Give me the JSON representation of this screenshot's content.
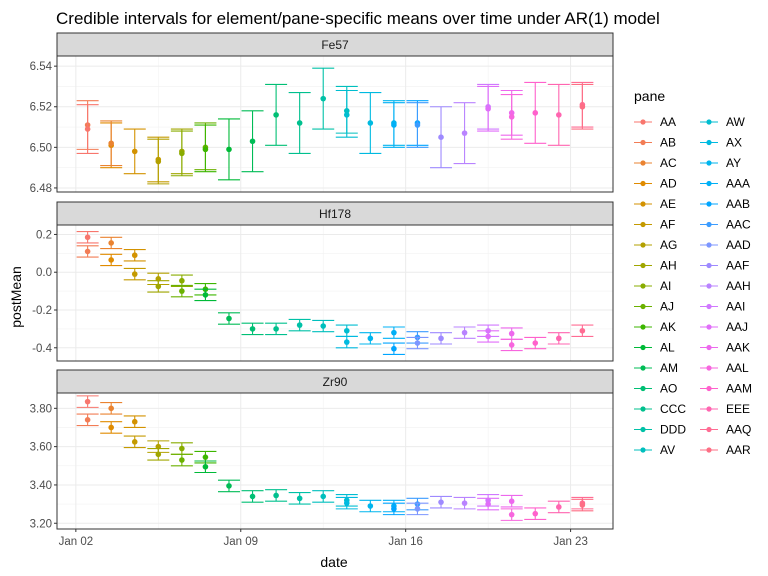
{
  "chart_data": {
    "type": "errorbar",
    "title": "Credible intervals for element/pane-specific means over time under AR(1) model",
    "xlabel": "date",
    "ylabel": "postMean",
    "x_ticks": [
      {
        "day": 2,
        "label": "Jan 02"
      },
      {
        "day": 9,
        "label": "Jan 09"
      },
      {
        "day": 16,
        "label": "Jan 16"
      },
      {
        "day": 23,
        "label": "Jan 23"
      }
    ],
    "xlim": [
      1.2,
      24.8
    ],
    "legend_title": "pane",
    "legend": [
      {
        "name": "AA",
        "color": "#F8766D"
      },
      {
        "name": "AB",
        "color": "#F27C55"
      },
      {
        "name": "AC",
        "color": "#EA8331"
      },
      {
        "name": "AD",
        "color": "#E08B00"
      },
      {
        "name": "AE",
        "color": "#D39200"
      },
      {
        "name": "AF",
        "color": "#C49A00"
      },
      {
        "name": "AG",
        "color": "#B3A000"
      },
      {
        "name": "AH",
        "color": "#A0A600"
      },
      {
        "name": "AI",
        "color": "#89AC00"
      },
      {
        "name": "AJ",
        "color": "#6BB100"
      },
      {
        "name": "AK",
        "color": "#3DB600"
      },
      {
        "name": "AL",
        "color": "#00BA38"
      },
      {
        "name": "AM",
        "color": "#00BC56"
      },
      {
        "name": "AO",
        "color": "#00BF74"
      },
      {
        "name": "CCC",
        "color": "#00C08E"
      },
      {
        "name": "DDD",
        "color": "#00C1A7"
      },
      {
        "name": "AV",
        "color": "#00BFBD"
      },
      {
        "name": "AW",
        "color": "#00BDD0"
      },
      {
        "name": "AX",
        "color": "#00BAE0"
      },
      {
        "name": "AY",
        "color": "#00B5EE"
      },
      {
        "name": "AAA",
        "color": "#00B0F6"
      },
      {
        "name": "AAB",
        "color": "#00A5FF"
      },
      {
        "name": "AAC",
        "color": "#3C9CFF"
      },
      {
        "name": "AAD",
        "color": "#7C96FF"
      },
      {
        "name": "AAF",
        "color": "#9E8AFF"
      },
      {
        "name": "AAH",
        "color": "#B983FF"
      },
      {
        "name": "AAI",
        "color": "#D078FF"
      },
      {
        "name": "AAJ",
        "color": "#E06EF9"
      },
      {
        "name": "AAK",
        "color": "#ED68ED"
      },
      {
        "name": "AAL",
        "color": "#F766DE"
      },
      {
        "name": "AAM",
        "color": "#FF61CC"
      },
      {
        "name": "EEE",
        "color": "#FF65B0"
      },
      {
        "name": "AAQ",
        "color": "#FF6C93"
      },
      {
        "name": "AAR",
        "color": "#FD6F85"
      }
    ],
    "panels": [
      {
        "name": "Fe57",
        "ylim": [
          6.478,
          6.545
        ],
        "y_ticks": [
          6.48,
          6.5,
          6.52,
          6.54
        ],
        "points": [
          {
            "day": 2.5,
            "y": 6.511,
            "lo": 6.499,
            "hi": 6.523,
            "c": 1
          },
          {
            "day": 2.5,
            "y": 6.509,
            "lo": 6.497,
            "hi": 6.521,
            "c": 0
          },
          {
            "day": 3.5,
            "y": 6.501,
            "lo": 6.49,
            "hi": 6.512,
            "c": 3
          },
          {
            "day": 3.5,
            "y": 6.502,
            "lo": 6.491,
            "hi": 6.513,
            "c": 2
          },
          {
            "day": 4.5,
            "y": 6.498,
            "lo": 6.487,
            "hi": 6.509,
            "c": 4
          },
          {
            "day": 5.5,
            "y": 6.494,
            "lo": 6.483,
            "hi": 6.505,
            "c": 5
          },
          {
            "day": 5.5,
            "y": 6.493,
            "lo": 6.482,
            "hi": 6.504,
            "c": 6
          },
          {
            "day": 6.5,
            "y": 6.498,
            "lo": 6.487,
            "hi": 6.509,
            "c": 7
          },
          {
            "day": 6.5,
            "y": 6.497,
            "lo": 6.486,
            "hi": 6.508,
            "c": 8
          },
          {
            "day": 7.5,
            "y": 6.5,
            "lo": 6.489,
            "hi": 6.512,
            "c": 9
          },
          {
            "day": 7.5,
            "y": 6.499,
            "lo": 6.488,
            "hi": 6.511,
            "c": 10
          },
          {
            "day": 8.5,
            "y": 6.499,
            "lo": 6.484,
            "hi": 6.514,
            "c": 11
          },
          {
            "day": 9.5,
            "y": 6.503,
            "lo": 6.488,
            "hi": 6.518,
            "c": 12
          },
          {
            "day": 10.5,
            "y": 6.516,
            "lo": 6.501,
            "hi": 6.531,
            "c": 13
          },
          {
            "day": 11.5,
            "y": 6.512,
            "lo": 6.497,
            "hi": 6.527,
            "c": 14
          },
          {
            "day": 12.5,
            "y": 6.524,
            "lo": 6.509,
            "hi": 6.539,
            "c": 15
          },
          {
            "day": 13.5,
            "y": 6.518,
            "lo": 6.507,
            "hi": 6.53,
            "c": 16
          },
          {
            "day": 13.5,
            "y": 6.516,
            "lo": 6.505,
            "hi": 6.528,
            "c": 17
          },
          {
            "day": 14.5,
            "y": 6.512,
            "lo": 6.497,
            "hi": 6.527,
            "c": 18
          },
          {
            "day": 15.5,
            "y": 6.512,
            "lo": 6.501,
            "hi": 6.523,
            "c": 19
          },
          {
            "day": 15.5,
            "y": 6.511,
            "lo": 6.5,
            "hi": 6.522,
            "c": 20
          },
          {
            "day": 16.5,
            "y": 6.512,
            "lo": 6.501,
            "hi": 6.523,
            "c": 21
          },
          {
            "day": 16.5,
            "y": 6.511,
            "lo": 6.5,
            "hi": 6.522,
            "c": 22
          },
          {
            "day": 17.5,
            "y": 6.505,
            "lo": 6.49,
            "hi": 6.52,
            "c": 24
          },
          {
            "day": 18.5,
            "y": 6.507,
            "lo": 6.492,
            "hi": 6.522,
            "c": 25
          },
          {
            "day": 19.5,
            "y": 6.52,
            "lo": 6.509,
            "hi": 6.531,
            "c": 26
          },
          {
            "day": 19.5,
            "y": 6.519,
            "lo": 6.508,
            "hi": 6.53,
            "c": 27
          },
          {
            "day": 20.5,
            "y": 6.517,
            "lo": 6.506,
            "hi": 6.528,
            "c": 28
          },
          {
            "day": 20.5,
            "y": 6.515,
            "lo": 6.504,
            "hi": 6.526,
            "c": 29
          },
          {
            "day": 21.5,
            "y": 6.517,
            "lo": 6.502,
            "hi": 6.532,
            "c": 30
          },
          {
            "day": 22.5,
            "y": 6.516,
            "lo": 6.501,
            "hi": 6.531,
            "c": 31
          },
          {
            "day": 23.5,
            "y": 6.521,
            "lo": 6.51,
            "hi": 6.532,
            "c": 32
          },
          {
            "day": 23.5,
            "y": 6.52,
            "lo": 6.509,
            "hi": 6.531,
            "c": 33
          }
        ]
      },
      {
        "name": "Hf178",
        "ylim": [
          -0.47,
          0.25
        ],
        "y_ticks": [
          -0.4,
          -0.2,
          0.0,
          0.2
        ],
        "points": [
          {
            "day": 2.5,
            "y": 0.185,
            "lo": 0.155,
            "hi": 0.215,
            "c": 0
          },
          {
            "day": 2.5,
            "y": 0.11,
            "lo": 0.08,
            "hi": 0.14,
            "c": 1
          },
          {
            "day": 3.5,
            "y": 0.155,
            "lo": 0.125,
            "hi": 0.185,
            "c": 2
          },
          {
            "day": 3.5,
            "y": 0.065,
            "lo": 0.035,
            "hi": 0.095,
            "c": 3
          },
          {
            "day": 4.5,
            "y": 0.09,
            "lo": 0.06,
            "hi": 0.12,
            "c": 4
          },
          {
            "day": 4.5,
            "y": -0.01,
            "lo": -0.04,
            "hi": 0.02,
            "c": 5
          },
          {
            "day": 5.5,
            "y": -0.035,
            "lo": -0.065,
            "hi": -0.005,
            "c": 6
          },
          {
            "day": 5.5,
            "y": -0.075,
            "lo": -0.105,
            "hi": -0.045,
            "c": 7
          },
          {
            "day": 6.5,
            "y": -0.045,
            "lo": -0.075,
            "hi": -0.015,
            "c": 8
          },
          {
            "day": 6.5,
            "y": -0.1,
            "lo": -0.13,
            "hi": -0.07,
            "c": 9
          },
          {
            "day": 7.5,
            "y": -0.09,
            "lo": -0.12,
            "hi": -0.06,
            "c": 10
          },
          {
            "day": 7.5,
            "y": -0.12,
            "lo": -0.15,
            "hi": -0.09,
            "c": 11
          },
          {
            "day": 8.5,
            "y": -0.245,
            "lo": -0.275,
            "hi": -0.215,
            "c": 12
          },
          {
            "day": 9.5,
            "y": -0.3,
            "lo": -0.33,
            "hi": -0.27,
            "c": 13
          },
          {
            "day": 10.5,
            "y": -0.3,
            "lo": -0.33,
            "hi": -0.27,
            "c": 14
          },
          {
            "day": 11.5,
            "y": -0.28,
            "lo": -0.31,
            "hi": -0.25,
            "c": 15
          },
          {
            "day": 12.5,
            "y": -0.285,
            "lo": -0.315,
            "hi": -0.255,
            "c": 16
          },
          {
            "day": 13.5,
            "y": -0.31,
            "lo": -0.34,
            "hi": -0.28,
            "c": 17
          },
          {
            "day": 13.5,
            "y": -0.37,
            "lo": -0.4,
            "hi": -0.34,
            "c": 18
          },
          {
            "day": 14.5,
            "y": -0.35,
            "lo": -0.38,
            "hi": -0.32,
            "c": 19
          },
          {
            "day": 15.5,
            "y": -0.32,
            "lo": -0.35,
            "hi": -0.29,
            "c": 20
          },
          {
            "day": 15.5,
            "y": -0.405,
            "lo": -0.435,
            "hi": -0.375,
            "c": 21
          },
          {
            "day": 16.5,
            "y": -0.345,
            "lo": -0.375,
            "hi": -0.315,
            "c": 22
          },
          {
            "day": 16.5,
            "y": -0.375,
            "lo": -0.405,
            "hi": -0.345,
            "c": 23
          },
          {
            "day": 17.5,
            "y": -0.35,
            "lo": -0.38,
            "hi": -0.32,
            "c": 24
          },
          {
            "day": 18.5,
            "y": -0.32,
            "lo": -0.35,
            "hi": -0.29,
            "c": 25
          },
          {
            "day": 19.5,
            "y": -0.31,
            "lo": -0.34,
            "hi": -0.28,
            "c": 26
          },
          {
            "day": 19.5,
            "y": -0.34,
            "lo": -0.37,
            "hi": -0.31,
            "c": 27
          },
          {
            "day": 20.5,
            "y": -0.325,
            "lo": -0.355,
            "hi": -0.295,
            "c": 28
          },
          {
            "day": 20.5,
            "y": -0.385,
            "lo": -0.415,
            "hi": -0.355,
            "c": 29
          },
          {
            "day": 21.5,
            "y": -0.375,
            "lo": -0.405,
            "hi": -0.345,
            "c": 30
          },
          {
            "day": 22.5,
            "y": -0.35,
            "lo": -0.38,
            "hi": -0.32,
            "c": 31
          },
          {
            "day": 23.5,
            "y": -0.31,
            "lo": -0.34,
            "hi": -0.28,
            "c": 32
          }
        ]
      },
      {
        "name": "Zr90",
        "ylim": [
          3.17,
          3.88
        ],
        "y_ticks": [
          3.2,
          3.4,
          3.6,
          3.8
        ],
        "points": [
          {
            "day": 2.5,
            "y": 3.835,
            "lo": 3.805,
            "hi": 3.865,
            "c": 0
          },
          {
            "day": 2.5,
            "y": 3.74,
            "lo": 3.71,
            "hi": 3.77,
            "c": 1
          },
          {
            "day": 3.5,
            "y": 3.8,
            "lo": 3.77,
            "hi": 3.83,
            "c": 2
          },
          {
            "day": 3.5,
            "y": 3.7,
            "lo": 3.67,
            "hi": 3.73,
            "c": 3
          },
          {
            "day": 4.5,
            "y": 3.73,
            "lo": 3.7,
            "hi": 3.76,
            "c": 4
          },
          {
            "day": 4.5,
            "y": 3.625,
            "lo": 3.595,
            "hi": 3.655,
            "c": 5
          },
          {
            "day": 5.5,
            "y": 3.6,
            "lo": 3.57,
            "hi": 3.63,
            "c": 6
          },
          {
            "day": 5.5,
            "y": 3.56,
            "lo": 3.53,
            "hi": 3.59,
            "c": 7
          },
          {
            "day": 6.5,
            "y": 3.59,
            "lo": 3.56,
            "hi": 3.62,
            "c": 8
          },
          {
            "day": 6.5,
            "y": 3.53,
            "lo": 3.5,
            "hi": 3.56,
            "c": 9
          },
          {
            "day": 7.5,
            "y": 3.545,
            "lo": 3.515,
            "hi": 3.575,
            "c": 10
          },
          {
            "day": 7.5,
            "y": 3.495,
            "lo": 3.465,
            "hi": 3.525,
            "c": 11
          },
          {
            "day": 8.5,
            "y": 3.395,
            "lo": 3.365,
            "hi": 3.425,
            "c": 12
          },
          {
            "day": 9.5,
            "y": 3.34,
            "lo": 3.31,
            "hi": 3.37,
            "c": 13
          },
          {
            "day": 10.5,
            "y": 3.345,
            "lo": 3.315,
            "hi": 3.375,
            "c": 14
          },
          {
            "day": 11.5,
            "y": 3.33,
            "lo": 3.3,
            "hi": 3.36,
            "c": 15
          },
          {
            "day": 12.5,
            "y": 3.34,
            "lo": 3.31,
            "hi": 3.37,
            "c": 16
          },
          {
            "day": 13.5,
            "y": 3.32,
            "lo": 3.29,
            "hi": 3.35,
            "c": 17
          },
          {
            "day": 13.5,
            "y": 3.305,
            "lo": 3.275,
            "hi": 3.335,
            "c": 18
          },
          {
            "day": 14.5,
            "y": 3.29,
            "lo": 3.26,
            "hi": 3.32,
            "c": 19
          },
          {
            "day": 15.5,
            "y": 3.29,
            "lo": 3.26,
            "hi": 3.32,
            "c": 20
          },
          {
            "day": 15.5,
            "y": 3.275,
            "lo": 3.245,
            "hi": 3.305,
            "c": 21
          },
          {
            "day": 16.5,
            "y": 3.3,
            "lo": 3.27,
            "hi": 3.33,
            "c": 22
          },
          {
            "day": 16.5,
            "y": 3.275,
            "lo": 3.245,
            "hi": 3.305,
            "c": 23
          },
          {
            "day": 17.5,
            "y": 3.31,
            "lo": 3.28,
            "hi": 3.34,
            "c": 24
          },
          {
            "day": 18.5,
            "y": 3.305,
            "lo": 3.275,
            "hi": 3.335,
            "c": 25
          },
          {
            "day": 19.5,
            "y": 3.32,
            "lo": 3.29,
            "hi": 3.35,
            "c": 26
          },
          {
            "day": 19.5,
            "y": 3.3,
            "lo": 3.27,
            "hi": 3.33,
            "c": 27
          },
          {
            "day": 20.5,
            "y": 3.315,
            "lo": 3.285,
            "hi": 3.345,
            "c": 28
          },
          {
            "day": 20.5,
            "y": 3.245,
            "lo": 3.215,
            "hi": 3.275,
            "c": 29
          },
          {
            "day": 21.5,
            "y": 3.25,
            "lo": 3.22,
            "hi": 3.28,
            "c": 30
          },
          {
            "day": 22.5,
            "y": 3.285,
            "lo": 3.255,
            "hi": 3.315,
            "c": 31
          },
          {
            "day": 23.5,
            "y": 3.305,
            "lo": 3.275,
            "hi": 3.335,
            "c": 32
          },
          {
            "day": 23.5,
            "y": 3.295,
            "lo": 3.265,
            "hi": 3.325,
            "c": 33
          }
        ]
      }
    ]
  }
}
